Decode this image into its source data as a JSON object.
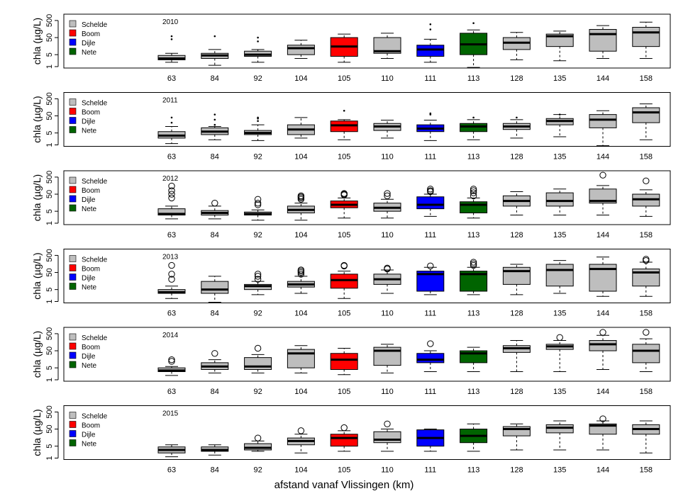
{
  "figure": {
    "xlabel": "afstand vanaf Vlissingen (km)",
    "ylabel": "chla (µg/L)"
  },
  "legend": [
    {
      "label": "Schelde",
      "color": "#bebebe"
    },
    {
      "label": "Boom",
      "color": "#ff0000"
    },
    {
      "label": "Dijle",
      "color": "#0000ff"
    },
    {
      "label": "Nete",
      "color": "#006400"
    }
  ],
  "chart_data": [
    {
      "type": "boxplot",
      "title": "2010",
      "ylabel": "chla (µg/L)",
      "yscale": "log",
      "yticks": [
        1,
        5,
        50,
        500
      ],
      "ylim": [
        1,
        800
      ],
      "categories": [
        "63",
        "84",
        "92",
        "104",
        "105",
        "110",
        "111",
        "113",
        "128",
        "135",
        "144",
        "158"
      ],
      "colors": [
        "#bebebe",
        "#bebebe",
        "#bebebe",
        "#bebebe",
        "#ff0000",
        "#bebebe",
        "#0000ff",
        "#006400",
        "#bebebe",
        "#bebebe",
        "#bebebe",
        "#bebebe"
      ],
      "outlier_symbol": "dot",
      "boxes": [
        {
          "min": 1.8,
          "q1": 2.5,
          "median": 3,
          "q3": 4.5,
          "max": 6,
          "outliers": [
            40,
            60
          ]
        },
        {
          "min": 1.2,
          "q1": 3,
          "median": 4.5,
          "q3": 6,
          "max": 10,
          "outliers": [
            60
          ]
        },
        {
          "min": 1.8,
          "q1": 4,
          "median": 5,
          "q3": 8,
          "max": 10,
          "outliers": [
            30,
            50
          ]
        },
        {
          "min": 3,
          "q1": 5,
          "median": 12,
          "q3": 18,
          "max": 35,
          "outliers": []
        },
        {
          "min": 1.8,
          "q1": 4,
          "median": 15,
          "q3": 50,
          "max": 80,
          "outliers": []
        },
        {
          "min": 3,
          "q1": 6,
          "median": 8,
          "q3": 50,
          "max": 90,
          "outliers": []
        },
        {
          "min": 1.8,
          "q1": 4,
          "median": 10,
          "q3": 18,
          "max": 40,
          "outliers": [
            150,
            300
          ]
        },
        {
          "min": 0.9,
          "q1": 5,
          "median": 20,
          "q3": 90,
          "max": 140,
          "outliers": [
            350
          ]
        },
        {
          "min": 2.5,
          "q1": 10,
          "median": 25,
          "q3": 50,
          "max": 100,
          "outliers": []
        },
        {
          "min": 2.2,
          "q1": 15,
          "median": 60,
          "q3": 80,
          "max": 120,
          "outliers": []
        },
        {
          "min": 3,
          "q1": 8,
          "median": 80,
          "q3": 150,
          "max": 250,
          "outliers": []
        },
        {
          "min": 3,
          "q1": 15,
          "median": 100,
          "q3": 200,
          "max": 400,
          "outliers": []
        }
      ]
    },
    {
      "type": "boxplot",
      "title": "2011",
      "ylabel": "chla (µg/L)",
      "yscale": "log",
      "yticks": [
        1,
        5,
        50,
        500
      ],
      "ylim": [
        1,
        800
      ],
      "categories": [
        "63",
        "84",
        "92",
        "104",
        "105",
        "110",
        "111",
        "113",
        "128",
        "135",
        "144",
        "158"
      ],
      "colors": [
        "#bebebe",
        "#bebebe",
        "#bebebe",
        "#bebebe",
        "#ff0000",
        "#bebebe",
        "#0000ff",
        "#006400",
        "#bebebe",
        "#bebebe",
        "#bebebe",
        "#bebebe"
      ],
      "outlier_symbol": "dot",
      "boxes": [
        {
          "min": 1.2,
          "q1": 2.5,
          "median": 3.5,
          "q3": 6,
          "max": 12,
          "outliers": [
            20,
            40
          ]
        },
        {
          "min": 2,
          "q1": 4,
          "median": 6,
          "q3": 10,
          "max": 12,
          "outliers": [
            15,
            30,
            60
          ]
        },
        {
          "min": 1.8,
          "q1": 4,
          "median": 5,
          "q3": 7,
          "max": 15,
          "outliers": [
            25,
            35,
            40
          ]
        },
        {
          "min": 2.5,
          "q1": 4,
          "median": 8,
          "q3": 15,
          "max": 40,
          "outliers": []
        },
        {
          "min": 2,
          "q1": 6,
          "median": 14,
          "q3": 25,
          "max": 30,
          "outliers": [
            100
          ]
        },
        {
          "min": 2.5,
          "q1": 7,
          "median": 12,
          "q3": 18,
          "max": 28,
          "outliers": []
        },
        {
          "min": 1.8,
          "q1": 6,
          "median": 9,
          "q3": 15,
          "max": 28,
          "outliers": [
            60,
            70
          ]
        },
        {
          "min": 2,
          "q1": 6,
          "median": 12,
          "q3": 18,
          "max": 30,
          "outliers": [
            40
          ]
        },
        {
          "min": 2.5,
          "q1": 8,
          "median": 12,
          "q3": 18,
          "max": 30,
          "outliers": [
            40
          ]
        },
        {
          "min": 3,
          "q1": 15,
          "median": 25,
          "q3": 35,
          "max": 60,
          "outliers": [
            60
          ]
        },
        {
          "min": 0.9,
          "q1": 10,
          "median": 30,
          "q3": 60,
          "max": 100,
          "outliers": []
        },
        {
          "min": 2,
          "q1": 20,
          "median": 80,
          "q3": 150,
          "max": 250,
          "outliers": []
        }
      ]
    },
    {
      "type": "boxplot",
      "title": "2012",
      "ylabel": "chla (µg/L)",
      "yscale": "log",
      "yticks": [
        1,
        5,
        50,
        500
      ],
      "ylim": [
        1,
        800
      ],
      "categories": [
        "63",
        "84",
        "92",
        "104",
        "105",
        "110",
        "111",
        "113",
        "128",
        "135",
        "144",
        "158"
      ],
      "colors": [
        "#bebebe",
        "#bebebe",
        "#bebebe",
        "#bebebe",
        "#ff0000",
        "#bebebe",
        "#0000ff",
        "#006400",
        "#bebebe",
        "#bebebe",
        "#bebebe",
        "#bebebe"
      ],
      "outlier_symbol": "circle",
      "boxes": [
        {
          "min": 1.8,
          "q1": 3,
          "median": 3.5,
          "q3": 7,
          "max": 10,
          "outliers": [
            30,
            50,
            80,
            150
          ]
        },
        {
          "min": 1.8,
          "q1": 3,
          "median": 4,
          "q3": 5.5,
          "max": 10,
          "outliers": [
            15
          ]
        },
        {
          "min": 1.5,
          "q1": 3,
          "median": 3.5,
          "q3": 4.5,
          "max": 6,
          "outliers": [
            12,
            15,
            25
          ]
        },
        {
          "min": 1.5,
          "q1": 4,
          "median": 6,
          "q3": 10,
          "max": 15,
          "outliers": [
            25,
            30,
            35,
            40
          ]
        },
        {
          "min": 2,
          "q1": 8,
          "median": 12,
          "q3": 20,
          "max": 30,
          "outliers": [
            45,
            50,
            55
          ]
        },
        {
          "min": 2,
          "q1": 5,
          "median": 8,
          "q3": 15,
          "max": 25,
          "outliers": [
            40,
            55
          ]
        },
        {
          "min": 2.5,
          "q1": 7,
          "median": 12,
          "q3": 35,
          "max": 50,
          "outliers": [
            70,
            80,
            100
          ]
        },
        {
          "min": 2,
          "q1": 4,
          "median": 12,
          "q3": 18,
          "max": 30,
          "outliers": [
            40,
            60,
            80,
            100
          ]
        },
        {
          "min": 3,
          "q1": 10,
          "median": 20,
          "q3": 40,
          "max": 70,
          "outliers": []
        },
        {
          "min": 3,
          "q1": 10,
          "median": 20,
          "q3": 60,
          "max": 100,
          "outliers": []
        },
        {
          "min": 3,
          "q1": 15,
          "median": 20,
          "q3": 100,
          "max": 160,
          "outliers": [
            650
          ]
        },
        {
          "min": 2.5,
          "q1": 10,
          "median": 25,
          "q3": 50,
          "max": 90,
          "outliers": [
            300
          ]
        }
      ]
    },
    {
      "type": "boxplot",
      "title": "2013",
      "ylabel": "chla (µg/L)",
      "yscale": "log",
      "yticks": [
        1,
        5,
        50,
        500
      ],
      "ylim": [
        1,
        800
      ],
      "categories": [
        "63",
        "84",
        "92",
        "104",
        "105",
        "110",
        "111",
        "113",
        "128",
        "135",
        "144",
        "158"
      ],
      "colors": [
        "#bebebe",
        "#bebebe",
        "#bebebe",
        "#bebebe",
        "#ff0000",
        "#bebebe",
        "#0000ff",
        "#006400",
        "#bebebe",
        "#bebebe",
        "#bebebe",
        "#bebebe"
      ],
      "outlier_symbol": "circle",
      "boxes": [
        {
          "min": 1.5,
          "q1": 3,
          "median": 3.5,
          "q3": 5,
          "max": 8,
          "outliers": [
            20,
            40,
            130
          ]
        },
        {
          "min": 0.9,
          "q1": 3,
          "median": 5,
          "q3": 15,
          "max": 30,
          "outliers": []
        },
        {
          "min": 2.5,
          "q1": 5,
          "median": 8,
          "q3": 10,
          "max": 15,
          "outliers": [
            20,
            30,
            40
          ]
        },
        {
          "min": 3,
          "q1": 7,
          "median": 10,
          "q3": 15,
          "max": 30,
          "outliers": [
            40,
            50,
            60,
            70
          ]
        },
        {
          "min": 1.5,
          "q1": 6,
          "median": 18,
          "q3": 40,
          "max": 60,
          "outliers": [
            120,
            130
          ]
        },
        {
          "min": 3,
          "q1": 10,
          "median": 20,
          "q3": 40,
          "max": 70,
          "outliers": [
            80,
            90
          ]
        },
        {
          "min": 2.5,
          "q1": 4,
          "median": 40,
          "q3": 60,
          "max": 100,
          "outliers": [
            120
          ]
        },
        {
          "min": 2.5,
          "q1": 4,
          "median": 40,
          "q3": 60,
          "max": 100,
          "outliers": [
            130,
            160,
            200
          ]
        },
        {
          "min": 2.5,
          "q1": 10,
          "median": 60,
          "q3": 100,
          "max": 150,
          "outliers": []
        },
        {
          "min": 3,
          "q1": 8,
          "median": 70,
          "q3": 150,
          "max": 250,
          "outliers": []
        },
        {
          "min": 2,
          "q1": 4,
          "median": 80,
          "q3": 150,
          "max": 400,
          "outliers": []
        },
        {
          "min": 2,
          "q1": 8,
          "median": 50,
          "q3": 80,
          "max": 200,
          "outliers": [
            250,
            300
          ]
        }
      ]
    },
    {
      "type": "boxplot",
      "title": "2014",
      "ylabel": "chla (µg/L)",
      "yscale": "log",
      "yticks": [
        1,
        5,
        50,
        500
      ],
      "ylim": [
        1,
        800
      ],
      "categories": [
        "63",
        "84",
        "92",
        "104",
        "105",
        "110",
        "111",
        "113",
        "128",
        "135",
        "144",
        "158"
      ],
      "colors": [
        "#bebebe",
        "#bebebe",
        "#bebebe",
        "#bebebe",
        "#ff0000",
        "#bebebe",
        "#0000ff",
        "#006400",
        "#bebebe",
        "#bebebe",
        "#bebebe",
        "#bebebe"
      ],
      "outlier_symbol": "circle",
      "boxes": [
        {
          "min": 1.8,
          "q1": 3,
          "median": 3.5,
          "q3": 5,
          "max": 6,
          "outliers": [
            12,
            15
          ]
        },
        {
          "min": 2.5,
          "q1": 4,
          "median": 6,
          "q3": 10,
          "max": 15,
          "outliers": [
            35
          ]
        },
        {
          "min": 2.5,
          "q1": 4,
          "median": 6,
          "q3": 20,
          "max": 30,
          "outliers": [
            70
          ]
        },
        {
          "min": 2.5,
          "q1": 5,
          "median": 35,
          "q3": 60,
          "max": 100,
          "outliers": []
        },
        {
          "min": 2,
          "q1": 4,
          "median": 15,
          "q3": 35,
          "max": 70,
          "outliers": []
        },
        {
          "min": 2.5,
          "q1": 7,
          "median": 50,
          "q3": 80,
          "max": 120,
          "outliers": []
        },
        {
          "min": 3,
          "q1": 10,
          "median": 15,
          "q3": 35,
          "max": 50,
          "outliers": [
            130
          ]
        },
        {
          "min": 3,
          "q1": 10,
          "median": 35,
          "q3": 50,
          "max": 80,
          "outliers": []
        },
        {
          "min": 3,
          "q1": 40,
          "median": 70,
          "q3": 100,
          "max": 200,
          "outliers": []
        },
        {
          "min": 3,
          "q1": 60,
          "median": 90,
          "q3": 120,
          "max": 200,
          "outliers": [
            300
          ]
        },
        {
          "min": 4,
          "q1": 50,
          "median": 120,
          "q3": 200,
          "max": 400,
          "outliers": [
            600
          ]
        },
        {
          "min": 3,
          "q1": 10,
          "median": 50,
          "q3": 120,
          "max": 250,
          "outliers": [
            600
          ]
        }
      ]
    },
    {
      "type": "boxplot",
      "title": "2015",
      "ylabel": "chla (µg/L)",
      "yscale": "log",
      "yticks": [
        1,
        5,
        50,
        500
      ],
      "ylim": [
        1,
        800
      ],
      "categories": [
        "63",
        "84",
        "92",
        "104",
        "105",
        "110",
        "111",
        "113",
        "128",
        "135",
        "144",
        "158"
      ],
      "colors": [
        "#bebebe",
        "#bebebe",
        "#bebebe",
        "#bebebe",
        "#ff0000",
        "#bebebe",
        "#0000ff",
        "#006400",
        "#bebebe",
        "#bebebe",
        "#bebebe",
        "#bebebe"
      ],
      "outlier_symbol": "circle",
      "boxes": [
        {
          "min": 1.2,
          "q1": 2,
          "median": 3,
          "q3": 4.5,
          "max": 6,
          "outliers": []
        },
        {
          "min": 1.5,
          "q1": 2.5,
          "median": 3,
          "q3": 4.5,
          "max": 6,
          "outliers": []
        },
        {
          "min": 2.5,
          "q1": 3,
          "median": 4,
          "q3": 7,
          "max": 10,
          "outliers": [
            15
          ]
        },
        {
          "min": 2,
          "q1": 6,
          "median": 10,
          "q3": 15,
          "max": 25,
          "outliers": [
            40
          ]
        },
        {
          "min": 2.5,
          "q1": 5,
          "median": 15,
          "q3": 25,
          "max": 40,
          "outliers": [
            60
          ]
        },
        {
          "min": 2.5,
          "q1": 8,
          "median": 12,
          "q3": 35,
          "max": 50,
          "outliers": [
            100
          ]
        },
        {
          "min": 2.5,
          "q1": 5,
          "median": 15,
          "q3": 45,
          "max": 50,
          "outliers": []
        },
        {
          "min": 2.5,
          "q1": 8,
          "median": 20,
          "q3": 50,
          "max": 100,
          "outliers": []
        },
        {
          "min": 3,
          "q1": 20,
          "median": 50,
          "q3": 70,
          "max": 100,
          "outliers": []
        },
        {
          "min": 3,
          "q1": 30,
          "median": 60,
          "q3": 90,
          "max": 150,
          "outliers": []
        },
        {
          "min": 3,
          "q1": 25,
          "median": 80,
          "q3": 100,
          "max": 150,
          "outliers": [
            200
          ]
        },
        {
          "min": 2,
          "q1": 25,
          "median": 50,
          "q3": 90,
          "max": 150,
          "outliers": []
        }
      ]
    }
  ]
}
